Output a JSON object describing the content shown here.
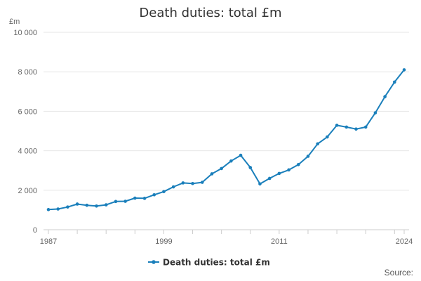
{
  "title": "Death duties: total £m",
  "unit": "£m",
  "source": "Source:",
  "legend": {
    "label": "Death duties: total £m"
  },
  "colors": {
    "series": "#1a7fbb",
    "grid": "#e6e6e6",
    "axis": "#cccccc"
  },
  "chart_data": {
    "type": "line",
    "title": "Death duties: total £m",
    "ylabel": "£m",
    "xlabel": "",
    "ylim": [
      0,
      10000
    ],
    "yticks": [
      0,
      2000,
      4000,
      6000,
      8000,
      10000
    ],
    "ytick_labels": [
      "0",
      "2 000",
      "4 000",
      "6 000",
      "8 000",
      "10 000"
    ],
    "xlim": [
      1987,
      2024
    ],
    "xtick_labels": [
      "1987",
      "1999",
      "2011",
      "2024"
    ],
    "grid": true,
    "legend_position": "bottom",
    "series": [
      {
        "name": "Death duties: total £m",
        "x": [
          1987,
          1988,
          1989,
          1990,
          1991,
          1992,
          1993,
          1994,
          1995,
          1996,
          1997,
          1998,
          1999,
          2000,
          2001,
          2002,
          2003,
          2004,
          2005,
          2006,
          2007,
          2008,
          2009,
          2010,
          2011,
          2012,
          2013,
          2014,
          2015,
          2016,
          2017,
          2018,
          2019,
          2020,
          2021,
          2022,
          2023,
          2024
        ],
        "values": [
          1020,
          1050,
          1150,
          1300,
          1240,
          1200,
          1260,
          1430,
          1440,
          1600,
          1590,
          1770,
          1930,
          2170,
          2370,
          2340,
          2400,
          2830,
          3100,
          3480,
          3770,
          3150,
          2320,
          2600,
          2850,
          3030,
          3300,
          3720,
          4350,
          4700,
          5290,
          5200,
          5100,
          5200,
          5920,
          6740,
          7480,
          8100
        ]
      }
    ]
  }
}
